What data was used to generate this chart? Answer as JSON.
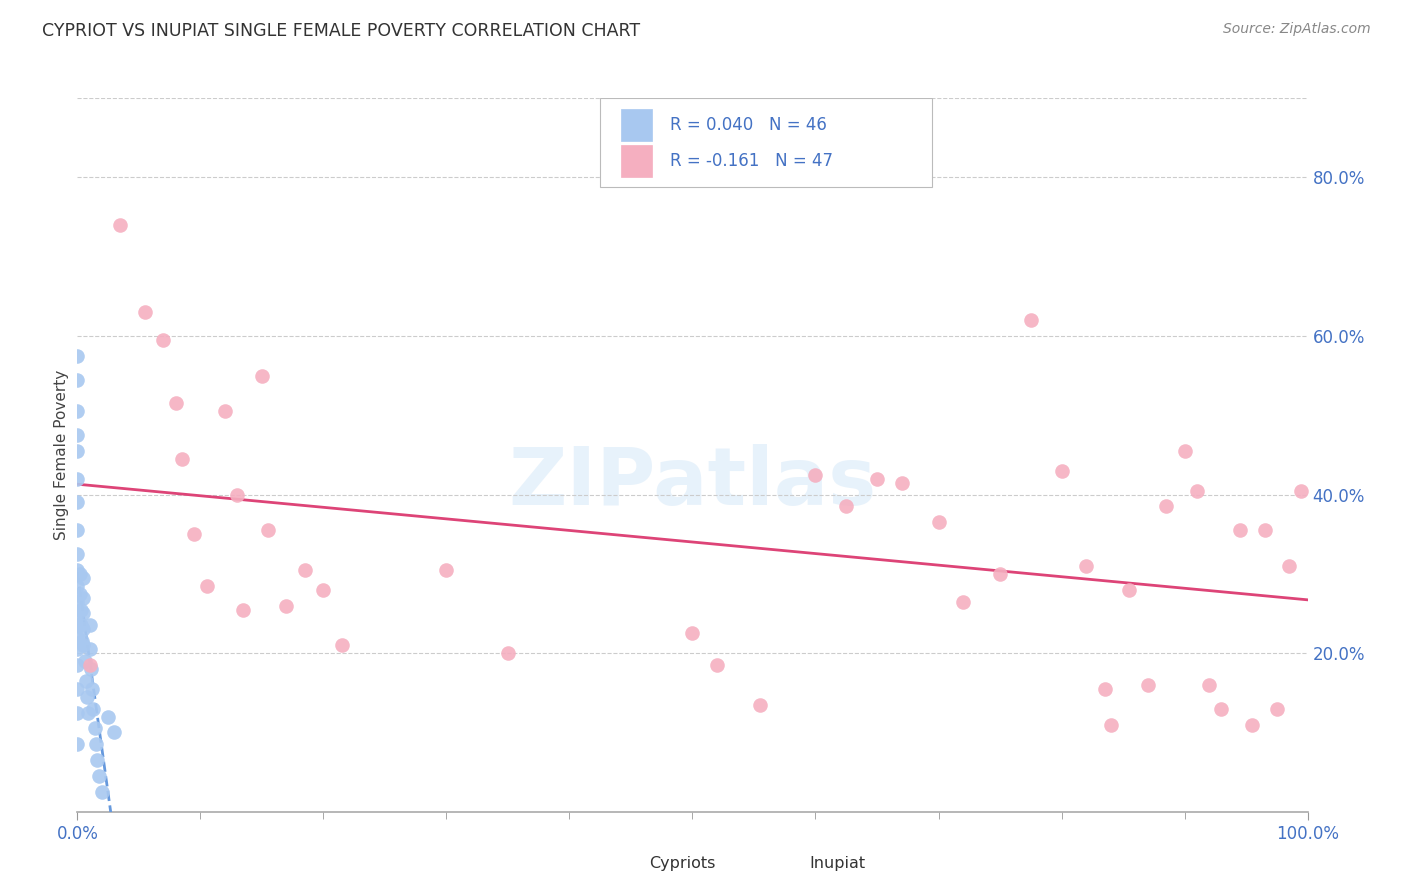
{
  "title": "CYPRIOT VS INUPIAT SINGLE FEMALE POVERTY CORRELATION CHART",
  "source": "Source: ZipAtlas.com",
  "xlabel_major_ticks": [
    0.0,
    0.2,
    0.4,
    0.6,
    0.8,
    1.0
  ],
  "xlabel_major_labels": [
    "0.0%",
    "",
    "",
    "",
    "",
    "100.0%"
  ],
  "ylabel": "Single Female Poverty",
  "ytick_vals": [
    0.2,
    0.4,
    0.6,
    0.8
  ],
  "ytick_labels": [
    "20.0%",
    "40.0%",
    "60.0%",
    "80.0%"
  ],
  "xmin": 0.0,
  "xmax": 1.0,
  "ymin": 0.0,
  "ymax": 0.9,
  "cypriot_R": 0.04,
  "cypriot_N": 46,
  "inupiat_R": -0.161,
  "inupiat_N": 47,
  "cypriot_color": "#a8c8f0",
  "inupiat_color": "#f5afc0",
  "trend_cypriot_color": "#6699dd",
  "trend_inupiat_color": "#dd4477",
  "watermark_text": "ZIPatlas",
  "bg_color": "#ffffff",
  "grid_color": "#cccccc",
  "tick_color": "#4472c4",
  "cypriot_x": [
    0.0,
    0.0,
    0.0,
    0.0,
    0.0,
    0.0,
    0.0,
    0.0,
    0.0,
    0.0,
    0.0,
    0.0,
    0.0,
    0.0,
    0.0,
    0.0,
    0.0,
    0.0,
    0.0,
    0.0,
    0.002,
    0.002,
    0.003,
    0.003,
    0.004,
    0.005,
    0.005,
    0.005,
    0.005,
    0.005,
    0.006,
    0.007,
    0.008,
    0.009,
    0.01,
    0.01,
    0.011,
    0.012,
    0.013,
    0.014,
    0.015,
    0.016,
    0.018,
    0.02,
    0.025,
    0.03
  ],
  "cypriot_y": [
    0.575,
    0.545,
    0.505,
    0.475,
    0.455,
    0.42,
    0.39,
    0.355,
    0.325,
    0.305,
    0.285,
    0.265,
    0.25,
    0.235,
    0.22,
    0.205,
    0.185,
    0.155,
    0.125,
    0.085,
    0.3,
    0.275,
    0.255,
    0.235,
    0.215,
    0.295,
    0.27,
    0.25,
    0.23,
    0.21,
    0.19,
    0.165,
    0.145,
    0.125,
    0.235,
    0.205,
    0.18,
    0.155,
    0.13,
    0.105,
    0.085,
    0.065,
    0.045,
    0.025,
    0.12,
    0.1
  ],
  "inupiat_x": [
    0.01,
    0.035,
    0.055,
    0.07,
    0.08,
    0.085,
    0.095,
    0.105,
    0.12,
    0.13,
    0.135,
    0.15,
    0.155,
    0.17,
    0.185,
    0.2,
    0.215,
    0.3,
    0.35,
    0.5,
    0.52,
    0.555,
    0.6,
    0.625,
    0.65,
    0.67,
    0.7,
    0.72,
    0.75,
    0.775,
    0.8,
    0.82,
    0.835,
    0.84,
    0.855,
    0.87,
    0.885,
    0.9,
    0.91,
    0.92,
    0.93,
    0.945,
    0.955,
    0.965,
    0.975,
    0.985,
    0.995
  ],
  "inupiat_y": [
    0.185,
    0.74,
    0.63,
    0.595,
    0.515,
    0.445,
    0.35,
    0.285,
    0.505,
    0.4,
    0.255,
    0.55,
    0.355,
    0.26,
    0.305,
    0.28,
    0.21,
    0.305,
    0.2,
    0.225,
    0.185,
    0.135,
    0.425,
    0.385,
    0.42,
    0.415,
    0.365,
    0.265,
    0.3,
    0.62,
    0.43,
    0.31,
    0.155,
    0.11,
    0.28,
    0.16,
    0.385,
    0.455,
    0.405,
    0.16,
    0.13,
    0.355,
    0.11,
    0.355,
    0.13,
    0.31,
    0.405
  ]
}
